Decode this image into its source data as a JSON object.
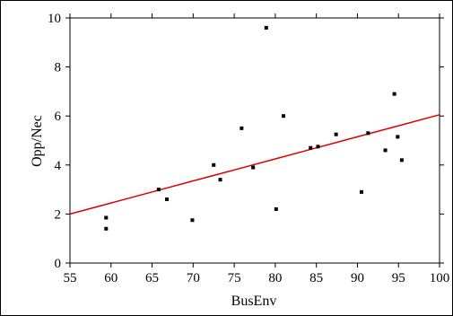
{
  "chart_data": {
    "type": "scatter",
    "xlabel": "BusEnv",
    "ylabel": "Opp/Nec",
    "xlim": [
      55,
      100
    ],
    "ylim": [
      0,
      10
    ],
    "xticks": [
      55,
      60,
      65,
      70,
      75,
      80,
      85,
      90,
      95,
      100
    ],
    "yticks": [
      0,
      2,
      4,
      6,
      8,
      10
    ],
    "grid": false,
    "colors": {
      "points": "#000000",
      "fit_line": "#e00000"
    },
    "points": [
      {
        "x": 59.4,
        "y": 1.85
      },
      {
        "x": 59.4,
        "y": 1.4
      },
      {
        "x": 65.8,
        "y": 3.0
      },
      {
        "x": 66.8,
        "y": 2.6
      },
      {
        "x": 69.9,
        "y": 1.75
      },
      {
        "x": 72.5,
        "y": 4.0
      },
      {
        "x": 73.3,
        "y": 3.4
      },
      {
        "x": 75.9,
        "y": 5.5
      },
      {
        "x": 77.3,
        "y": 3.9
      },
      {
        "x": 78.9,
        "y": 9.6
      },
      {
        "x": 80.1,
        "y": 2.2
      },
      {
        "x": 81.0,
        "y": 6.0
      },
      {
        "x": 84.3,
        "y": 4.7
      },
      {
        "x": 85.2,
        "y": 4.75
      },
      {
        "x": 87.4,
        "y": 5.25
      },
      {
        "x": 90.5,
        "y": 2.9
      },
      {
        "x": 91.3,
        "y": 5.3
      },
      {
        "x": 93.4,
        "y": 4.6
      },
      {
        "x": 94.5,
        "y": 6.9
      },
      {
        "x": 94.9,
        "y": 5.15
      },
      {
        "x": 95.4,
        "y": 4.2
      }
    ],
    "fit_line": [
      {
        "x": 55,
        "y": 2.0
      },
      {
        "x": 60,
        "y": 2.45
      },
      {
        "x": 65,
        "y": 2.9
      },
      {
        "x": 70,
        "y": 3.35
      },
      {
        "x": 75,
        "y": 3.8
      },
      {
        "x": 80,
        "y": 4.25
      },
      {
        "x": 85,
        "y": 4.7
      },
      {
        "x": 90,
        "y": 5.15
      },
      {
        "x": 95,
        "y": 5.6
      },
      {
        "x": 100,
        "y": 6.05
      }
    ]
  }
}
